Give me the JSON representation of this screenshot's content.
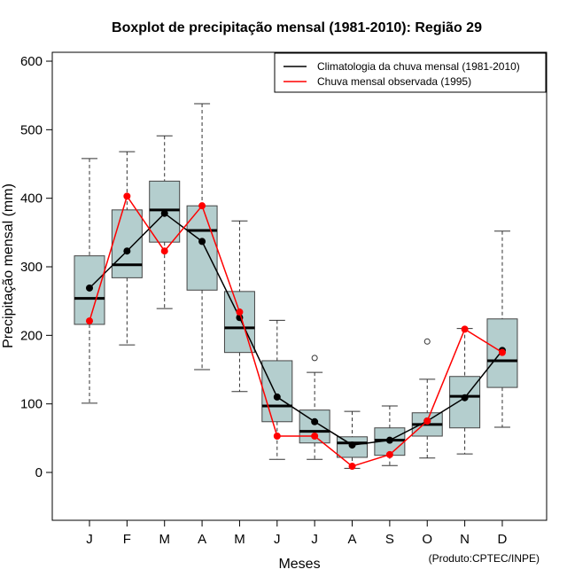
{
  "chart_data": {
    "type": "boxplot",
    "title": "Boxplot de precipitação mensal (1981-2010): Região 29",
    "xlabel": "Meses",
    "ylabel": "Precipitação mensal (mm)",
    "credit": "(Produto:CPTEC/INPE)",
    "ylim": [
      -70,
      613
    ],
    "yticks": [
      0,
      100,
      200,
      300,
      400,
      500,
      600
    ],
    "categories": [
      "J",
      "F",
      "M",
      "A",
      "M",
      "J",
      "J",
      "A",
      "S",
      "O",
      "N",
      "D"
    ],
    "boxes": [
      {
        "low": 101,
        "q1": 216,
        "median": 254,
        "q3": 316,
        "high": 458,
        "outliers": []
      },
      {
        "low": 186,
        "q1": 284,
        "median": 303,
        "q3": 383,
        "high": 468,
        "outliers": []
      },
      {
        "low": 239,
        "q1": 336,
        "median": 383,
        "q3": 425,
        "high": 491,
        "outliers": []
      },
      {
        "low": 150,
        "q1": 266,
        "median": 353,
        "q3": 389,
        "high": 538,
        "outliers": []
      },
      {
        "low": 118,
        "q1": 175,
        "median": 211,
        "q3": 264,
        "high": 367,
        "outliers": []
      },
      {
        "low": 19,
        "q1": 74,
        "median": 97,
        "q3": 163,
        "high": 222,
        "outliers": []
      },
      {
        "low": 19,
        "q1": 43,
        "median": 60,
        "q3": 91,
        "high": 146,
        "outliers": [
          167
        ]
      },
      {
        "low": 6,
        "q1": 22,
        "median": 43,
        "q3": 52,
        "high": 89,
        "outliers": []
      },
      {
        "low": 10,
        "q1": 25,
        "median": 47,
        "q3": 65,
        "high": 97,
        "outliers": []
      },
      {
        "low": 21,
        "q1": 53,
        "median": 70,
        "q3": 87,
        "high": 136,
        "outliers": [
          191
        ]
      },
      {
        "low": 27,
        "q1": 65,
        "median": 111,
        "q3": 140,
        "high": 210,
        "outliers": []
      },
      {
        "low": 66,
        "q1": 124,
        "median": 163,
        "q3": 224,
        "high": 352,
        "outliers": []
      }
    ],
    "series": [
      {
        "name": "Climatologia da chuva mensal (1981-2010)",
        "color": "#000000",
        "values": [
          269,
          323,
          378,
          337,
          226,
          110,
          74,
          40,
          47,
          75,
          109,
          178
        ]
      },
      {
        "name": "Chuva mensal observada (1995)",
        "color": "#ff0000",
        "values": [
          221,
          403,
          323,
          389,
          234,
          53,
          53,
          9,
          26,
          75,
          209,
          175
        ]
      }
    ],
    "box_fill": "#b4cece",
    "legend_position": "top-right"
  }
}
